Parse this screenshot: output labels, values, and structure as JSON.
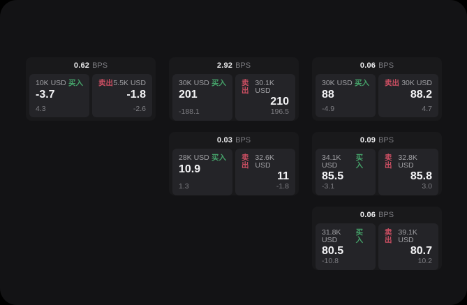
{
  "colors": {
    "buy_green": "#45a169",
    "sell_red": "#cd4f63",
    "card_bg": "#19191b",
    "panel_bg": "#242428",
    "page_bg": "#131315"
  },
  "cards": [
    {
      "bps_value": "0.62",
      "bps_unit": "BPS",
      "buy": {
        "amount": "10K USD",
        "side_label": "买入",
        "price": "-3.7",
        "change": "4.3"
      },
      "sell": {
        "side_label": "卖出",
        "amount": "5.5K USD",
        "price": "-1.8",
        "change": "-2.6"
      }
    },
    {
      "bps_value": "2.92",
      "bps_unit": "BPS",
      "buy": {
        "amount": "30K USD",
        "side_label": "买入",
        "price": "201",
        "change": "-188.1"
      },
      "sell": {
        "side_label": "卖出",
        "amount": "30.1K USD",
        "price": "210",
        "change": "196.5"
      }
    },
    {
      "bps_value": "0.06",
      "bps_unit": "BPS",
      "buy": {
        "amount": "30K USD",
        "side_label": "买入",
        "price": "88",
        "change": "-4.9"
      },
      "sell": {
        "side_label": "卖出",
        "amount": "30K USD",
        "price": "88.2",
        "change": "4.7"
      }
    },
    {
      "bps_value": "0.03",
      "bps_unit": "BPS",
      "buy": {
        "amount": "28K USD",
        "side_label": "买入",
        "price": "10.9",
        "change": "1.3"
      },
      "sell": {
        "side_label": "卖出",
        "amount": "32.6K USD",
        "price": "11",
        "change": "-1.8"
      }
    },
    {
      "bps_value": "0.09",
      "bps_unit": "BPS",
      "buy": {
        "amount": "34.1K USD",
        "side_label": "买入",
        "price": "85.5",
        "change": "-3.1"
      },
      "sell": {
        "side_label": "卖出",
        "amount": "32.8K USD",
        "price": "85.8",
        "change": "3.0"
      }
    },
    {
      "bps_value": "0.06",
      "bps_unit": "BPS",
      "buy": {
        "amount": "31.8K USD",
        "side_label": "买入",
        "price": "80.5",
        "change": "-10.8"
      },
      "sell": {
        "side_label": "卖出",
        "amount": "39.1K USD",
        "price": "80.7",
        "change": "10.2"
      }
    }
  ]
}
